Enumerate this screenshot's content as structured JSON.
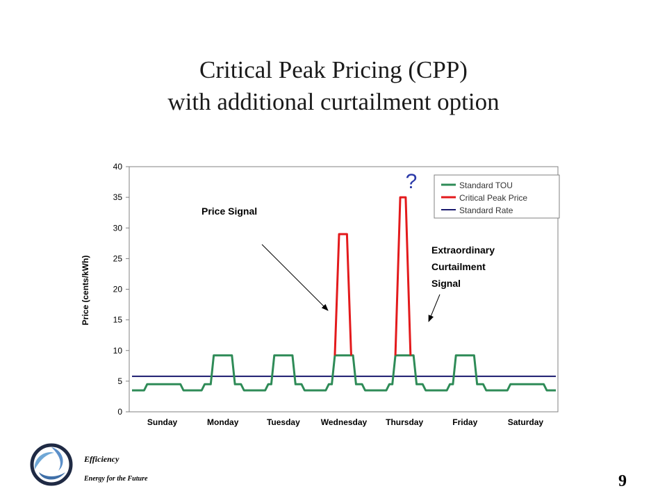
{
  "slide": {
    "title_line1": "Critical Peak Pricing (CPP)",
    "title_line2": "with additional curtailment option",
    "footer_brand": "Efficiency",
    "footer_tagline": "Energy for the Future",
    "page_number": "9"
  },
  "chart_data": {
    "type": "line",
    "ylabel": "Price (cents/kWh)",
    "ylim": [
      0,
      40
    ],
    "yticks": [
      0,
      5,
      10,
      15,
      20,
      25,
      30,
      35,
      40
    ],
    "categories": [
      "Sunday",
      "Monday",
      "Tuesday",
      "Wednesday",
      "Thursday",
      "Friday",
      "Saturday"
    ],
    "grid": false,
    "legend_position": "top-right",
    "series": [
      {
        "name": "Standard TOU",
        "color": "#2e8b57",
        "x": [
          0,
          0.2,
          0.25,
          0.8,
          0.85,
          1.15,
          1.2,
          1.3,
          1.35,
          1.65,
          1.7,
          1.8,
          1.85,
          2.2,
          2.25,
          2.3,
          2.35,
          2.65,
          2.7,
          2.8,
          2.85,
          3.2,
          3.25,
          3.3,
          3.35,
          3.65,
          3.7,
          3.8,
          3.85,
          4.2,
          4.25,
          4.3,
          4.35,
          4.65,
          4.7,
          4.8,
          4.85,
          5.2,
          5.25,
          5.3,
          5.35,
          5.65,
          5.7,
          5.8,
          5.85,
          6.2,
          6.25,
          6.8,
          6.85,
          7
        ],
        "values": [
          3.5,
          3.5,
          4.5,
          4.5,
          3.5,
          3.5,
          4.5,
          4.5,
          9.2,
          9.2,
          4.5,
          4.5,
          3.5,
          3.5,
          4.5,
          4.5,
          9.2,
          9.2,
          4.5,
          4.5,
          3.5,
          3.5,
          4.5,
          4.5,
          9.2,
          9.2,
          4.5,
          4.5,
          3.5,
          3.5,
          4.5,
          4.5,
          9.2,
          9.2,
          4.5,
          4.5,
          3.5,
          3.5,
          4.5,
          4.5,
          9.2,
          9.2,
          4.5,
          4.5,
          3.5,
          3.5,
          4.5,
          4.5,
          3.5,
          3.5
        ]
      },
      {
        "name": "Critical Peak Price",
        "color": "#e31a1c",
        "segments": [
          {
            "x": [
              3.35,
              3.42,
              3.55,
              3.62
            ],
            "values": [
              9.2,
              29,
              29,
              9.2
            ]
          },
          {
            "x": [
              4.35,
              4.43,
              4.52,
              4.6
            ],
            "values": [
              9.2,
              35,
              35,
              9.2
            ]
          }
        ]
      },
      {
        "name": "Standard Rate",
        "color": "#1a1a6e",
        "x": [
          0,
          7
        ],
        "values": [
          5.8,
          5.8
        ]
      }
    ],
    "annotations": [
      {
        "text_lines": [
          "Price Signal"
        ]
      },
      {
        "text_lines": [
          "Extraordinary",
          "Curtailment",
          "Signal"
        ]
      },
      {
        "text_lines": [
          "?"
        ],
        "color": "#2b3aa8"
      }
    ]
  }
}
